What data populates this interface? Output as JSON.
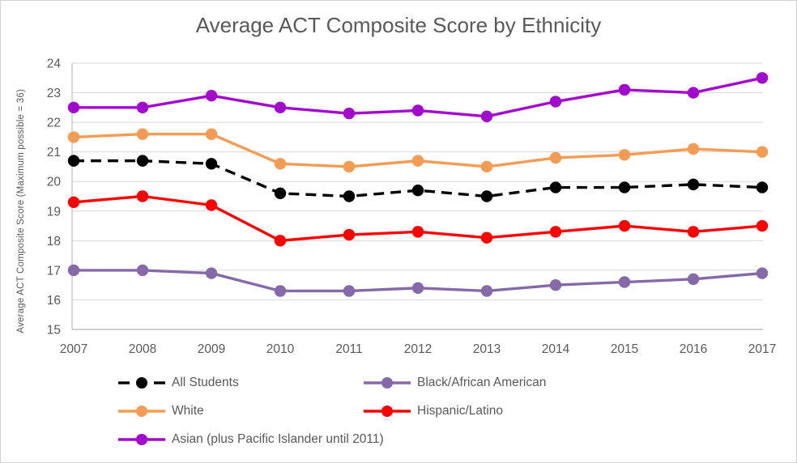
{
  "chart_data": {
    "type": "line",
    "title": "Average ACT Composite Score by Ethnicity",
    "xlabel": "",
    "ylabel": "Average ACT Composite Score (Maximum  possible = 36)",
    "x": [
      "2007",
      "2008",
      "2009",
      "2010",
      "2011",
      "2012",
      "2013",
      "2014",
      "2015",
      "2016",
      "2017"
    ],
    "ylim": [
      15,
      24
    ],
    "yticks": [
      15,
      16,
      17,
      18,
      19,
      20,
      21,
      22,
      23,
      24
    ],
    "grid": true,
    "legend_position": "bottom",
    "series": [
      {
        "name": "All Students",
        "color": "#000000",
        "dash": "dashed",
        "values": [
          20.7,
          20.7,
          20.6,
          19.6,
          19.5,
          19.7,
          19.5,
          19.8,
          19.8,
          19.9,
          19.8
        ]
      },
      {
        "name": "Black/African American",
        "color": "#8669A9",
        "dash": "solid",
        "values": [
          17.0,
          17.0,
          16.9,
          16.3,
          16.3,
          16.4,
          16.3,
          16.5,
          16.6,
          16.7,
          16.9
        ]
      },
      {
        "name": "White",
        "color": "#F49C54",
        "dash": "solid",
        "values": [
          21.5,
          21.6,
          21.6,
          20.6,
          20.5,
          20.7,
          20.5,
          20.8,
          20.9,
          21.1,
          21.0
        ]
      },
      {
        "name": "Hispanic/Latino",
        "color": "#FF0000",
        "dash": "solid",
        "values": [
          19.3,
          19.5,
          19.2,
          18.0,
          18.2,
          18.3,
          18.1,
          18.3,
          18.5,
          18.3,
          18.5
        ]
      },
      {
        "name": "Asian (plus Pacific Islander until 2011)",
        "color": "#A208CD",
        "dash": "solid",
        "values": [
          22.5,
          22.5,
          22.9,
          22.5,
          22.3,
          22.4,
          22.2,
          22.7,
          23.1,
          23.0,
          23.5
        ]
      }
    ]
  },
  "styles": {
    "title_color": "#595959",
    "axis_text_color": "#595959",
    "grid_color": "#D9D9D9",
    "axis_line_color": "#BFBFBF",
    "background": "#FFFFFF",
    "border_color": "#D3D3D3"
  }
}
